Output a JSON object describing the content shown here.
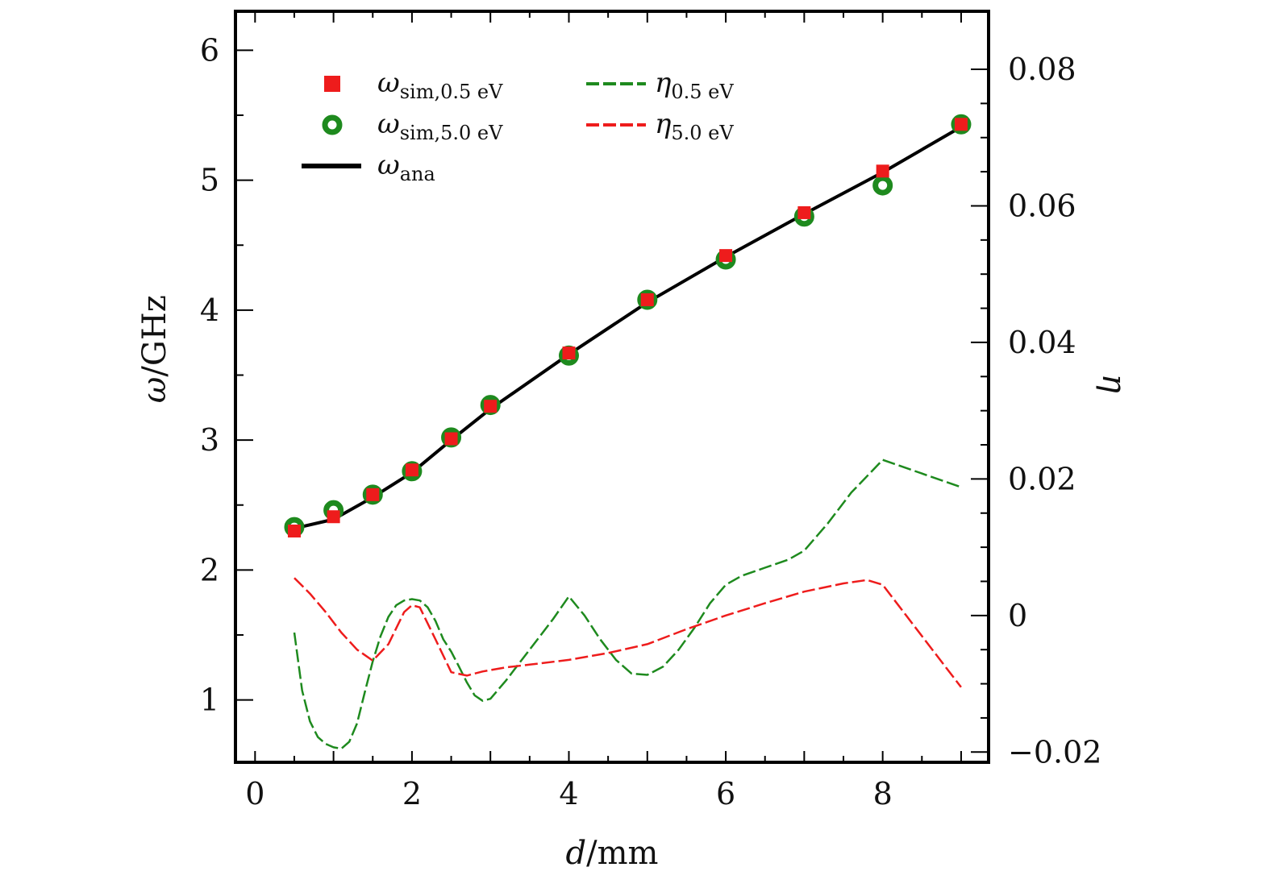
{
  "chart_data": {
    "type": "line",
    "xlabel": {
      "var": "d",
      "unit": "/mm"
    },
    "ylabel_left": {
      "var": "ω",
      "unit": "/GHz"
    },
    "ylabel_right": {
      "var": "η"
    },
    "xlim": [
      -0.25,
      9.35
    ],
    "ylim_left": [
      0.52,
      6.3
    ],
    "ylim_right": [
      -0.0215,
      0.0885
    ],
    "x_ticks": [
      0,
      2,
      4,
      6,
      8
    ],
    "y_left_ticks": [
      1,
      2,
      3,
      4,
      5,
      6
    ],
    "y_right_ticks": [
      -0.02,
      0,
      0.02,
      0.04,
      0.06,
      0.08
    ],
    "x_tick_labels": [
      "0",
      "2",
      "4",
      "6",
      "8"
    ],
    "y_left_tick_labels": [
      "1",
      "2",
      "3",
      "4",
      "5",
      "6"
    ],
    "y_right_tick_labels": [
      "−0.02",
      "0",
      "0.02",
      "0.04",
      "0.06",
      "0.08"
    ],
    "legend_position": "top-left",
    "series": [
      {
        "name": "ω_sim,0.5 eV",
        "legend": {
          "sym": "ω",
          "sub": "sim,0.5 eV"
        },
        "axis": "left",
        "kind": "scatter-square",
        "color": "#ee1c1c",
        "x": [
          0.5,
          1,
          1.5,
          2,
          2.5,
          3,
          4,
          5,
          6,
          7,
          8,
          9
        ],
        "y": [
          2.3,
          2.41,
          2.58,
          2.77,
          3.01,
          3.26,
          3.67,
          4.08,
          4.42,
          4.75,
          5.07,
          5.43
        ]
      },
      {
        "name": "ω_sim,5.0 eV",
        "legend": {
          "sym": "ω",
          "sub": "sim,5.0 eV"
        },
        "axis": "left",
        "kind": "scatter-ring",
        "color": "#1e8a1e",
        "x": [
          0.5,
          1,
          1.5,
          2,
          2.5,
          3,
          4,
          5,
          6,
          7,
          8,
          9
        ],
        "y": [
          2.33,
          2.46,
          2.58,
          2.76,
          3.02,
          3.27,
          3.65,
          4.08,
          4.39,
          4.72,
          4.96,
          5.43
        ]
      },
      {
        "name": "ω_ana",
        "legend": {
          "sym": "ω",
          "sub": "ana"
        },
        "axis": "left",
        "kind": "line-solid",
        "color": "#000000",
        "x": [
          0.5,
          1,
          1.5,
          2,
          2.5,
          3,
          4,
          5,
          6,
          7,
          8,
          9
        ],
        "y": [
          2.32,
          2.39,
          2.56,
          2.75,
          3.0,
          3.24,
          3.66,
          4.06,
          4.41,
          4.74,
          5.06,
          5.41
        ]
      },
      {
        "name": "η0.5 eV",
        "legend": {
          "sym": "η",
          "sub": "0.5 eV"
        },
        "axis": "right",
        "kind": "line-dashed",
        "color": "#1e8a1e",
        "x": [
          0.5,
          0.6,
          0.7,
          0.8,
          0.9,
          1.0,
          1.1,
          1.2,
          1.3,
          1.4,
          1.5,
          1.6,
          1.7,
          1.8,
          1.9,
          2.0,
          2.1,
          2.2,
          2.3,
          2.4,
          2.5,
          2.6,
          2.7,
          2.8,
          2.9,
          3.0,
          3.2,
          3.4,
          3.6,
          3.8,
          4.0,
          4.2,
          4.4,
          4.6,
          4.8,
          5.0,
          5.2,
          5.4,
          5.6,
          5.8,
          6.0,
          6.2,
          6.5,
          6.8,
          7.0,
          7.3,
          7.6,
          8.0,
          8.5,
          9.0
        ],
        "y": [
          -0.0025,
          -0.011,
          -0.0155,
          -0.0178,
          -0.0188,
          -0.0193,
          -0.0195,
          -0.0185,
          -0.0158,
          -0.0112,
          -0.0067,
          -0.003,
          -0.0002,
          0.0015,
          0.0022,
          0.0024,
          0.0022,
          0.0012,
          -0.0008,
          -0.0035,
          -0.0053,
          -0.0075,
          -0.0098,
          -0.0117,
          -0.0125,
          -0.0122,
          -0.0095,
          -0.0065,
          -0.0035,
          -0.0005,
          0.0028,
          0.0,
          -0.0035,
          -0.0065,
          -0.0085,
          -0.0087,
          -0.0075,
          -0.005,
          -0.0018,
          0.0018,
          0.0045,
          0.0058,
          0.007,
          0.0082,
          0.0095,
          0.0135,
          0.018,
          0.0228,
          0.0208,
          0.0188
        ]
      },
      {
        "name": "η5.0 eV",
        "legend": {
          "sym": "η",
          "sub": "5.0 eV"
        },
        "axis": "right",
        "kind": "line-dashed",
        "color": "#ee1c1c",
        "x": [
          0.5,
          0.7,
          0.9,
          1.1,
          1.3,
          1.5,
          1.7,
          1.9,
          2.0,
          2.1,
          2.3,
          2.5,
          2.7,
          2.9,
          3.2,
          3.5,
          4.0,
          4.5,
          5.0,
          5.5,
          6.0,
          6.5,
          7.0,
          7.5,
          7.8,
          8.0,
          8.3,
          8.6,
          9.0
        ],
        "y": [
          0.0055,
          0.0032,
          0.0005,
          -0.0025,
          -0.005,
          -0.0066,
          -0.0042,
          0.0005,
          0.0015,
          0.0012,
          -0.0035,
          -0.0083,
          -0.0088,
          -0.0082,
          -0.0076,
          -0.0072,
          -0.0065,
          -0.0055,
          -0.0042,
          -0.002,
          0.0,
          0.0018,
          0.0035,
          0.0047,
          0.0052,
          0.0045,
          0.0,
          -0.0045,
          -0.0105
        ]
      }
    ]
  }
}
